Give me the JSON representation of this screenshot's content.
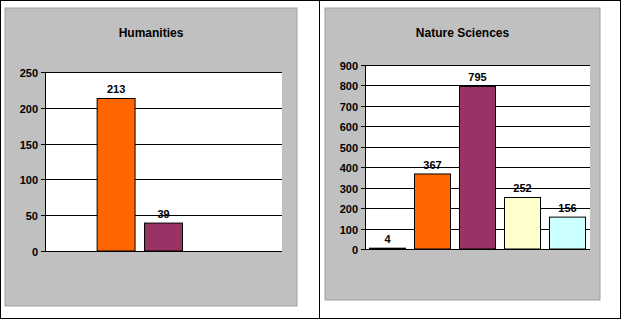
{
  "chart_data": [
    {
      "type": "bar",
      "title": "Humanities",
      "categories": [
        null,
        null,
        null,
        null,
        null
      ],
      "values": [
        null,
        213,
        39,
        null,
        null
      ],
      "colors": [
        "#000000",
        "#FF6600",
        "#993366",
        "#FFFFCC",
        "#CCFFFF"
      ],
      "ylim": [
        0,
        250
      ],
      "yticks": [
        0,
        50,
        100,
        150,
        200,
        250
      ],
      "grid": true,
      "data_labels": true,
      "tick_labels": "y"
    },
    {
      "type": "bar",
      "title": "Nature Sciences",
      "categories": [
        null,
        null,
        null,
        null,
        null
      ],
      "values": [
        4,
        367,
        795,
        252,
        156
      ],
      "colors": [
        "#000000",
        "#FF6600",
        "#993366",
        "#FFFFCC",
        "#CCFFFF"
      ],
      "ylim": [
        0,
        900
      ],
      "yticks": [
        0,
        100,
        200,
        300,
        400,
        500,
        600,
        700,
        800,
        900
      ],
      "grid": true,
      "data_labels": true,
      "tick_labels": "y"
    }
  ]
}
